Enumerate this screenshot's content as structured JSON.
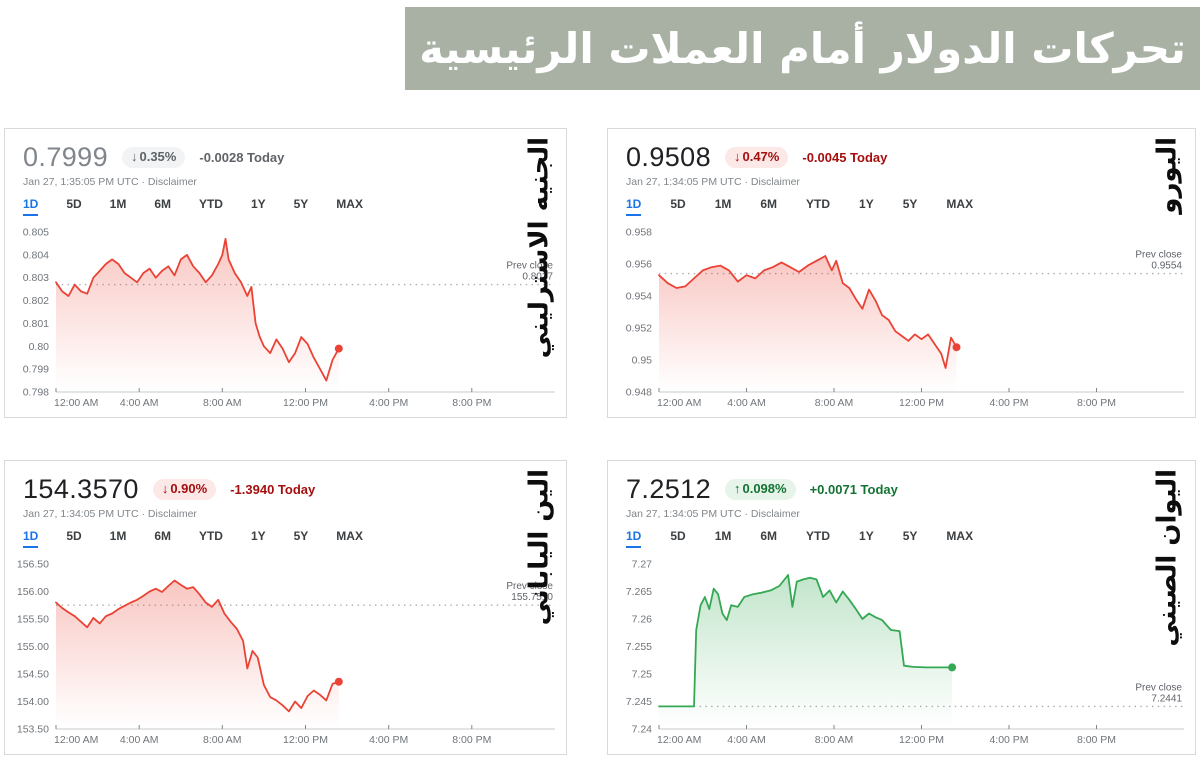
{
  "banner": {
    "title": "تحركات الدولار أمام العملات الرئيسية",
    "bg_color": "#a8b1a4",
    "text_color": "#ffffff"
  },
  "shared": {
    "tabs": [
      "1D",
      "5D",
      "1M",
      "6M",
      "YTD",
      "1Y",
      "5Y",
      "MAX"
    ],
    "active_tab": "1D",
    "separator": "·",
    "disclaimer": "Disclaimer",
    "prev_close_label": "Prev close"
  },
  "colors": {
    "loss_text": "#a50e0e",
    "loss_pill_bg": "#fce8e6",
    "gain_text": "#137333",
    "gain_pill_bg": "#e6f4ea",
    "muted_text": "#5f6368",
    "muted_pill_bg": "#f1f3f4",
    "line_red": "#ea4335",
    "line_green": "#34a853",
    "tab_active_blue": "#1a73e8"
  },
  "cards": [
    {
      "name_ar": "الجنيه الاسترليني",
      "price": "0.7999",
      "arrow": "↓",
      "change_percent": "0.35%",
      "change_today": "-0.0028 Today",
      "timestamp": "Jan 27, 1:35:05 PM UTC",
      "state": "muted",
      "prev_close": "0.8027"
    },
    {
      "name_ar": "اليورو",
      "price": "0.9508",
      "arrow": "↓",
      "change_percent": "0.47%",
      "change_today": "-0.0045 Today",
      "timestamp": "Jan 27, 1:34:05 PM UTC",
      "state": "loss",
      "prev_close": "0.9554"
    },
    {
      "name_ar": "الين الياباني",
      "price": "154.3570",
      "arrow": "↓",
      "change_percent": "0.90%",
      "change_today": "-1.3940 Today",
      "timestamp": "Jan 27, 1:34:05 PM UTC",
      "state": "loss",
      "prev_close": "155.7510"
    },
    {
      "name_ar": "اليوان الصيني",
      "price": "7.2512",
      "arrow": "↑",
      "change_percent": "0.098%",
      "change_today": "+0.0071 Today",
      "timestamp": "Jan 27, 1:34:05 PM UTC",
      "state": "gain",
      "prev_close": "7.2441"
    }
  ],
  "chart_data": [
    {
      "type": "area",
      "title": "الجنيه الاسترليني",
      "line_color": "#ea4335",
      "ylim": [
        0.798,
        0.805
      ],
      "yticks": [
        [
          0.805,
          "0.805"
        ],
        [
          0.804,
          "0.804"
        ],
        [
          0.803,
          "0.803"
        ],
        [
          0.802,
          "0.802"
        ],
        [
          0.801,
          "0.801"
        ],
        [
          0.8,
          "0.80"
        ],
        [
          0.799,
          "0.799"
        ],
        [
          0.798,
          "0.798"
        ]
      ],
      "xlim_hours": [
        0,
        24
      ],
      "xticks": [
        [
          0,
          "12:00 AM"
        ],
        [
          4,
          "4:00 AM"
        ],
        [
          8,
          "8:00 AM"
        ],
        [
          12,
          "12:00 PM"
        ],
        [
          16,
          "4:00 PM"
        ],
        [
          20,
          "8:00 PM"
        ]
      ],
      "prev_close": 0.8027,
      "prev_close_text": "0.8027",
      "points": [
        [
          0,
          0.8028
        ],
        [
          0.3,
          0.8024
        ],
        [
          0.6,
          0.8022
        ],
        [
          0.9,
          0.8027
        ],
        [
          1.2,
          0.8024
        ],
        [
          1.5,
          0.8023
        ],
        [
          1.8,
          0.803
        ],
        [
          2.1,
          0.8033
        ],
        [
          2.4,
          0.8036
        ],
        [
          2.7,
          0.8038
        ],
        [
          3.0,
          0.8036
        ],
        [
          3.3,
          0.8032
        ],
        [
          3.6,
          0.803
        ],
        [
          3.9,
          0.8028
        ],
        [
          4.2,
          0.8032
        ],
        [
          4.5,
          0.8034
        ],
        [
          4.8,
          0.803
        ],
        [
          5.1,
          0.8033
        ],
        [
          5.4,
          0.8035
        ],
        [
          5.7,
          0.8031
        ],
        [
          6.0,
          0.8038
        ],
        [
          6.3,
          0.804
        ],
        [
          6.6,
          0.8035
        ],
        [
          6.9,
          0.8032
        ],
        [
          7.2,
          0.8028
        ],
        [
          7.5,
          0.8031
        ],
        [
          7.8,
          0.8036
        ],
        [
          8.0,
          0.804
        ],
        [
          8.15,
          0.8047
        ],
        [
          8.3,
          0.8038
        ],
        [
          8.6,
          0.8032
        ],
        [
          8.9,
          0.8028
        ],
        [
          9.2,
          0.8022
        ],
        [
          9.4,
          0.8026
        ],
        [
          9.6,
          0.801
        ],
        [
          9.8,
          0.8004
        ],
        [
          10.0,
          0.8
        ],
        [
          10.3,
          0.7997
        ],
        [
          10.6,
          0.8003
        ],
        [
          10.9,
          0.7999
        ],
        [
          11.2,
          0.7993
        ],
        [
          11.5,
          0.7997
        ],
        [
          11.8,
          0.8004
        ],
        [
          12.1,
          0.8001
        ],
        [
          12.4,
          0.7995
        ],
        [
          12.7,
          0.799
        ],
        [
          13.0,
          0.7985
        ],
        [
          13.3,
          0.7994
        ],
        [
          13.6,
          0.7999
        ]
      ]
    },
    {
      "type": "area",
      "title": "اليورو",
      "line_color": "#ea4335",
      "ylim": [
        0.948,
        0.958
      ],
      "yticks": [
        [
          0.958,
          "0.958"
        ],
        [
          0.956,
          "0.956"
        ],
        [
          0.954,
          "0.954"
        ],
        [
          0.952,
          "0.952"
        ],
        [
          0.95,
          "0.95"
        ],
        [
          0.948,
          "0.948"
        ]
      ],
      "xlim_hours": [
        0,
        24
      ],
      "xticks": [
        [
          0,
          "12:00 AM"
        ],
        [
          4,
          "4:00 AM"
        ],
        [
          8,
          "8:00 AM"
        ],
        [
          12,
          "12:00 PM"
        ],
        [
          16,
          "4:00 PM"
        ],
        [
          20,
          "8:00 PM"
        ]
      ],
      "prev_close": 0.9554,
      "prev_close_text": "0.9554",
      "points": [
        [
          0,
          0.9553
        ],
        [
          0.4,
          0.9548
        ],
        [
          0.8,
          0.9545
        ],
        [
          1.2,
          0.9546
        ],
        [
          1.6,
          0.9551
        ],
        [
          2.0,
          0.9556
        ],
        [
          2.4,
          0.9558
        ],
        [
          2.8,
          0.9559
        ],
        [
          3.2,
          0.9556
        ],
        [
          3.6,
          0.9549
        ],
        [
          4.0,
          0.9553
        ],
        [
          4.4,
          0.9551
        ],
        [
          4.8,
          0.9556
        ],
        [
          5.2,
          0.9558
        ],
        [
          5.6,
          0.9561
        ],
        [
          6.0,
          0.9558
        ],
        [
          6.4,
          0.9555
        ],
        [
          6.8,
          0.9559
        ],
        [
          7.2,
          0.9562
        ],
        [
          7.6,
          0.9565
        ],
        [
          7.9,
          0.9556
        ],
        [
          8.1,
          0.9562
        ],
        [
          8.4,
          0.9548
        ],
        [
          8.7,
          0.9545
        ],
        [
          9.0,
          0.9538
        ],
        [
          9.3,
          0.9532
        ],
        [
          9.6,
          0.9544
        ],
        [
          9.9,
          0.9537
        ],
        [
          10.2,
          0.9528
        ],
        [
          10.5,
          0.9525
        ],
        [
          10.8,
          0.9518
        ],
        [
          11.1,
          0.9515
        ],
        [
          11.4,
          0.9512
        ],
        [
          11.7,
          0.9516
        ],
        [
          12.0,
          0.9513
        ],
        [
          12.3,
          0.9516
        ],
        [
          12.6,
          0.951
        ],
        [
          12.9,
          0.9504
        ],
        [
          13.1,
          0.9495
        ],
        [
          13.35,
          0.9514
        ],
        [
          13.6,
          0.9508
        ]
      ]
    },
    {
      "type": "area",
      "title": "الين الياباني",
      "line_color": "#ea4335",
      "ylim": [
        153.5,
        156.5
      ],
      "yticks": [
        [
          156.5,
          "156.50"
        ],
        [
          156.0,
          "156.00"
        ],
        [
          155.5,
          "155.50"
        ],
        [
          155.0,
          "155.00"
        ],
        [
          154.5,
          "154.50"
        ],
        [
          154.0,
          "154.00"
        ],
        [
          153.5,
          "153.50"
        ]
      ],
      "xlim_hours": [
        0,
        24
      ],
      "xticks": [
        [
          0,
          "12:00 AM"
        ],
        [
          4,
          "4:00 AM"
        ],
        [
          8,
          "8:00 AM"
        ],
        [
          12,
          "12:00 PM"
        ],
        [
          16,
          "4:00 PM"
        ],
        [
          20,
          "8:00 PM"
        ]
      ],
      "prev_close": 155.751,
      "prev_close_text": "155.7510",
      "points": [
        [
          0,
          155.8
        ],
        [
          0.3,
          155.7
        ],
        [
          0.6,
          155.62
        ],
        [
          0.9,
          155.55
        ],
        [
          1.2,
          155.45
        ],
        [
          1.5,
          155.35
        ],
        [
          1.8,
          155.52
        ],
        [
          2.1,
          155.42
        ],
        [
          2.4,
          155.55
        ],
        [
          2.7,
          155.6
        ],
        [
          3.0,
          155.68
        ],
        [
          3.3,
          155.74
        ],
        [
          3.6,
          155.8
        ],
        [
          3.9,
          155.85
        ],
        [
          4.2,
          155.92
        ],
        [
          4.5,
          156.0
        ],
        [
          4.8,
          156.05
        ],
        [
          5.1,
          155.99
        ],
        [
          5.4,
          156.1
        ],
        [
          5.7,
          156.2
        ],
        [
          6.0,
          156.12
        ],
        [
          6.3,
          156.05
        ],
        [
          6.6,
          156.08
        ],
        [
          6.9,
          155.95
        ],
        [
          7.2,
          155.8
        ],
        [
          7.5,
          155.72
        ],
        [
          7.8,
          155.85
        ],
        [
          8.1,
          155.6
        ],
        [
          8.4,
          155.45
        ],
        [
          8.7,
          155.32
        ],
        [
          9.0,
          155.1
        ],
        [
          9.2,
          154.6
        ],
        [
          9.45,
          154.92
        ],
        [
          9.7,
          154.8
        ],
        [
          10.0,
          154.3
        ],
        [
          10.3,
          154.08
        ],
        [
          10.6,
          154.02
        ],
        [
          10.9,
          153.93
        ],
        [
          11.2,
          153.82
        ],
        [
          11.5,
          154.0
        ],
        [
          11.8,
          153.88
        ],
        [
          12.1,
          154.1
        ],
        [
          12.4,
          154.2
        ],
        [
          12.7,
          154.12
        ],
        [
          13.0,
          154.02
        ],
        [
          13.3,
          154.32
        ],
        [
          13.6,
          154.36
        ]
      ]
    },
    {
      "type": "area",
      "title": "اليوان الصيني",
      "line_color": "#34a853",
      "ylim": [
        7.24,
        7.27
      ],
      "yticks": [
        [
          7.27,
          "7.27"
        ],
        [
          7.265,
          "7.265"
        ],
        [
          7.26,
          "7.26"
        ],
        [
          7.255,
          "7.255"
        ],
        [
          7.25,
          "7.25"
        ],
        [
          7.245,
          "7.245"
        ],
        [
          7.24,
          "7.24"
        ]
      ],
      "xlim_hours": [
        0,
        24
      ],
      "xticks": [
        [
          0,
          "12:00 AM"
        ],
        [
          4,
          "4:00 AM"
        ],
        [
          8,
          "8:00 AM"
        ],
        [
          12,
          "12:00 PM"
        ],
        [
          16,
          "4:00 PM"
        ],
        [
          20,
          "8:00 PM"
        ]
      ],
      "prev_close": 7.2441,
      "prev_close_text": "7.2441",
      "points": [
        [
          0,
          7.2441
        ],
        [
          1.6,
          7.2441
        ],
        [
          1.7,
          7.258
        ],
        [
          1.9,
          7.2625
        ],
        [
          2.1,
          7.264
        ],
        [
          2.3,
          7.2618
        ],
        [
          2.5,
          7.2655
        ],
        [
          2.7,
          7.2645
        ],
        [
          2.9,
          7.261
        ],
        [
          3.1,
          7.2598
        ],
        [
          3.3,
          7.2625
        ],
        [
          3.6,
          7.2622
        ],
        [
          3.9,
          7.264
        ],
        [
          4.3,
          7.2645
        ],
        [
          4.7,
          7.2648
        ],
        [
          5.1,
          7.2652
        ],
        [
          5.5,
          7.266
        ],
        [
          5.9,
          7.268
        ],
        [
          6.1,
          7.2622
        ],
        [
          6.3,
          7.2668
        ],
        [
          6.6,
          7.2672
        ],
        [
          6.9,
          7.2675
        ],
        [
          7.2,
          7.2672
        ],
        [
          7.5,
          7.264
        ],
        [
          7.8,
          7.2652
        ],
        [
          8.1,
          7.263
        ],
        [
          8.4,
          7.265
        ],
        [
          8.7,
          7.2635
        ],
        [
          9.0,
          7.2618
        ],
        [
          9.3,
          7.26
        ],
        [
          9.6,
          7.261
        ],
        [
          9.9,
          7.2603
        ],
        [
          10.2,
          7.2598
        ],
        [
          10.6,
          7.258
        ],
        [
          11.0,
          7.2578
        ],
        [
          11.2,
          7.2515
        ],
        [
          11.6,
          7.2513
        ],
        [
          12.2,
          7.2512
        ],
        [
          12.8,
          7.2512
        ],
        [
          13.4,
          7.2512
        ]
      ]
    }
  ]
}
